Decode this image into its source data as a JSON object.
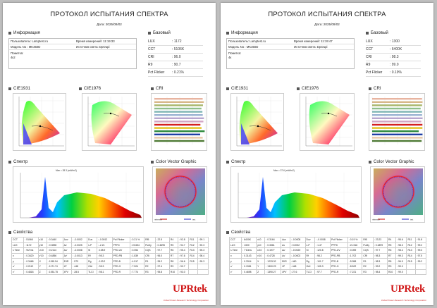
{
  "pages": [
    {
      "title": "ПРОТОКОЛ ИСПЫТАНИЯ СПЕКТРА",
      "date": "Дата: 2025/09/02",
      "info_header": "Информация",
      "basic_header": "Базовый",
      "user": "Пользователь: Lamptest.ru",
      "time": "Время измерений: 11:19:33",
      "model": "Модель No : MK350D",
      "source": "Источник света: DpOupi",
      "note_label": "Пометка:",
      "note": "4к2",
      "basic": [
        [
          "LUX",
          ": 1172"
        ],
        [
          "CCT",
          ": 5106K"
        ],
        [
          "CRI",
          ": 96.0"
        ],
        [
          "R9",
          ": 90.7"
        ],
        [
          "Pct Flicker",
          ": 0.21%"
        ]
      ],
      "cie1931": "CIE1931",
      "cie1976": "CIE1976",
      "cri": "CRI",
      "spectrum": "Спектр",
      "cvg": "Color Vector Graphic",
      "props": "Свойства",
      "table": [
        [
          "CCT",
          ": 5106K",
          "x10",
          ": 0.3440",
          "Δuv",
          ": -0.0002",
          "Duv",
          ": -0.0012",
          "Pct Flicker",
          ": 0.21 %",
          "Rf5",
          ": 22.5",
          "R4",
          ": 92.8",
          "R11",
          ": 99.1"
        ],
        [
          "LUX",
          ": 1172",
          "y10",
          ": 0.3598",
          "Δv",
          ": -0.0025",
          "λ-P",
          ": -2.21",
          "PPFD",
          ": 19.654",
          "Purity",
          ": 0.4695",
          "R5",
          ": 94.7",
          "R12",
          ": 90.3"
        ],
        [
          "λ Time",
          ": 9sTms",
          "u'10",
          ": 0.2114",
          "Δu'",
          ": -0.0008",
          "Si",
          ": 108.9",
          "PFD-UV",
          ": 0.054",
          "CQS",
          ": 97.7",
          "R6",
          ": 95.4",
          "R13",
          ": 95.3"
        ],
        [
          "x",
          ": 0.3420",
          "v'10",
          ": 0.4856",
          "Δv'",
          ": -0.0013",
          "Rf",
          ": 95.3",
          "PFD-PB",
          ": 1.839",
          "CRI",
          ": 96.0",
          "R7",
          ": 97.6",
          "R14",
          ": 98.4"
        ],
        [
          "y",
          ": 0.3468",
          "X",
          ": 1155.94",
          "EIIR",
          ": 573",
          "Rg",
          ": 103.2",
          "PFD-B",
          ": 4.517",
          "R1",
          ": 95.2",
          "R8",
          ": 96.6",
          "R15",
          ": 95.3"
        ],
        [
          "u'",
          ": 0.2112",
          "Y",
          ": 1171.74",
          "λP",
          ": 448",
          "GAI",
          ": 95.3",
          "PFD-G",
          ": 7.524",
          "R2",
          ": 97.4",
          "R9",
          ": 90.7",
          "",
          ""
        ],
        [
          "v'",
          ": 0.4818",
          "Z",
          ": 1051.75",
          "λPV",
          ": 28.5",
          "TLCI",
          ": 98.1",
          "PFD-R",
          ": 7.774",
          "R3",
          ": 95.8",
          "R10",
          ": 93.0",
          "",
          ""
        ]
      ],
      "spec_caption": "Max = 28.3 (mW/m2)",
      "legend": [
        "reference",
        "test"
      ]
    },
    {
      "title": "ПРОТОКОЛ ИСПЫТАНИЯ СПЕКТРА",
      "date": "Дата: 2025/09/02",
      "info_header": "Информация",
      "basic_header": "Базовый",
      "user": "Пользователь: Lamptest.ru",
      "time": "Время измерений: 11:19:47",
      "model": "Модель No : MK350D",
      "source": "Источник света: DpOupi",
      "note_label": "Пометка:",
      "note": "4к",
      "basic": [
        [
          "LUX",
          ": 1300"
        ],
        [
          "CCT",
          ": 6400K"
        ],
        [
          "CRI",
          ": 98.3"
        ],
        [
          "R9",
          ": 99.0"
        ],
        [
          "Pct Flicker",
          ": 0.19%"
        ]
      ],
      "cie1931": "CIE1931",
      "cie1976": "CIE1976",
      "cri": "CRI",
      "spectrum": "Спектр",
      "cvg": "Color Vector Graphic",
      "props": "Свойства",
      "table": [
        [
          "CCT",
          ": 6400K",
          "x10",
          ": 0.3164",
          "Δuv",
          ": -0.0008",
          "Duv",
          ": -0.0008",
          "Pct Flicker",
          ": 0.19 %",
          "Rf5",
          ": 23.23",
          "R4",
          ": 95.6",
          "R11",
          ": 91.8"
        ],
        [
          "LUX",
          ": 1300",
          "y10",
          ": 0.3361",
          "Δv",
          ": 0.0002",
          "λ-P",
          ": 1.47",
          "PPFD",
          ": 21.516",
          "Purity",
          ": 0.1899",
          "R5",
          ": 98.3",
          "R12",
          ": 99.2"
        ],
        [
          "λ Time",
          ": 7'10ms",
          "u'10",
          ": 0.1977",
          "Δu'",
          ": -0.0020",
          "Si",
          ": 120.8",
          "PFD-UV",
          ": 0.059",
          "CQS",
          ": 97.7",
          "R6",
          ": 98.4",
          "R13",
          ": 99.3"
        ],
        [
          "x",
          ": 0.3143",
          "v'10",
          ": 0.4728",
          "Δv'",
          ": -0.0002",
          "Rf",
          ": 98.2",
          "PFD-PB",
          ": 1.702",
          "CRI",
          ": 98.3",
          "R7",
          ": 99.3",
          "R14",
          ": 97.5"
        ],
        [
          "y",
          ": 0.3314",
          "X",
          ": 1233.32",
          "EIIR",
          ": 460",
          "Rg",
          ": 101.7",
          "PFD-B",
          ": 5.958",
          "R1",
          ": 98.3",
          "R8",
          ": 96.9",
          "R15",
          ": 99.2"
        ],
        [
          "u'",
          ": 0.1981",
          "Y",
          ": 1300.29",
          "λP",
          ": 448",
          "GAI",
          ": 105.3",
          "PFD-G",
          ": 8.522",
          "R2",
          ": 99.2",
          "R9",
          ": 99.0",
          "",
          ""
        ],
        [
          "v'",
          ": 0.4698",
          "Z",
          ": 1390.27",
          "λPV",
          ": 27.6",
          "TLCI",
          ": 97.7",
          "PFD-R",
          ": 7.221",
          "R3",
          ": 98.4",
          "R10",
          ": 99.0",
          "",
          ""
        ]
      ],
      "spec_caption": "Max = 37.6 (mW/m2)",
      "legend": [
        "reference",
        "test"
      ]
    }
  ],
  "brand": {
    "logo": "UPRtek",
    "slogan": "United Power Research Technology Corporation",
    "color": "#d01818"
  },
  "cri_bars": {
    "colors": [
      "#e8b4a0",
      "#d7b889",
      "#a7b66a",
      "#8fbf8a",
      "#7fb5b4",
      "#9ab3d2",
      "#b7a6cf",
      "#d2a5c4",
      "#d32020",
      "#e3c21e",
      "#2c8a3c",
      "#1e3fa6",
      "#e7c7a6",
      "#4d7a34"
    ],
    "left": [
      95.2,
      97.4,
      95.8,
      92.8,
      94.7,
      95.4,
      97.6,
      96.6,
      90.7,
      93.0,
      99.1,
      90.3,
      95.3,
      98.4
    ],
    "right": [
      98.3,
      99.2,
      98.4,
      95.6,
      98.3,
      98.4,
      99.3,
      96.9,
      99.0,
      99.0,
      91.8,
      99.2,
      99.3,
      97.5
    ]
  }
}
